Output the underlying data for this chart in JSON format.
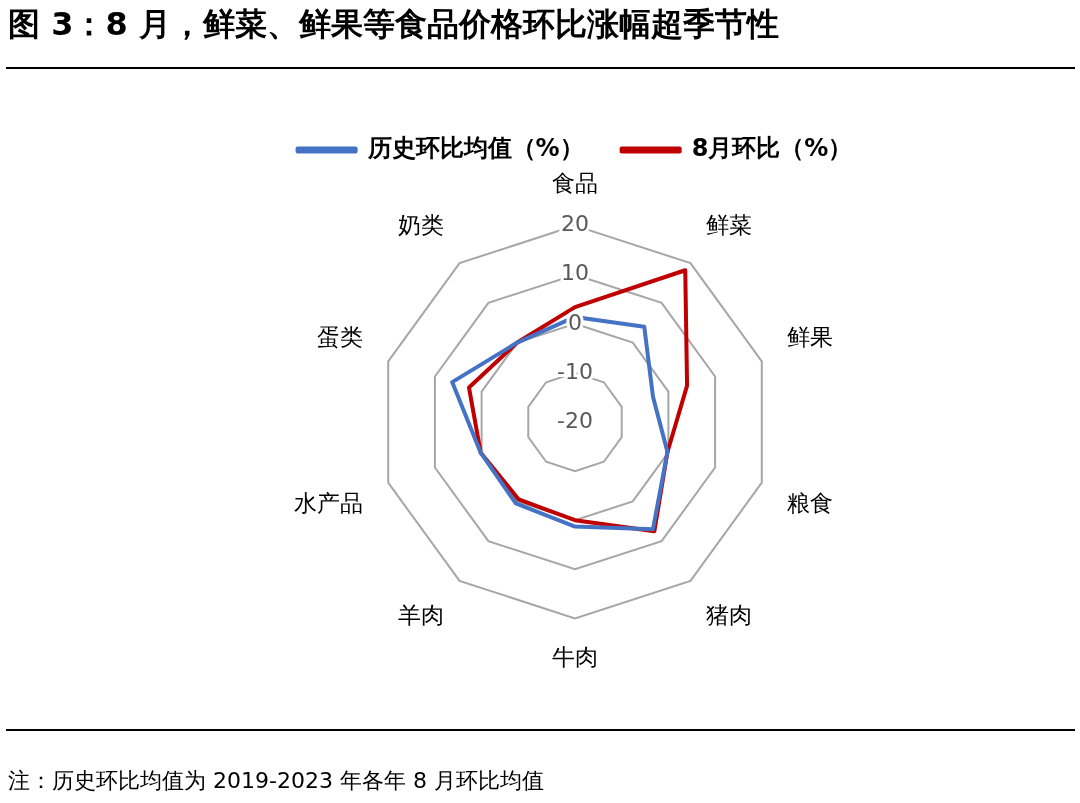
{
  "chart_data": {
    "type": "radar",
    "title": "图 3：8 月，鲜菜、鲜果等食品价格环比涨幅超季节性",
    "categories": [
      "食品",
      "鲜菜",
      "鲜果",
      "粮食",
      "猪肉",
      "牛肉",
      "羊肉",
      "水产品",
      "蛋类",
      "奶类"
    ],
    "series": [
      {
        "name": "历史环比均值（%）",
        "color": "#4472c4",
        "values": [
          1.4,
          4.0,
          -3.3,
          -0.2,
          7.0,
          1.3,
          0.5,
          0.2,
          6.3,
          0
        ]
      },
      {
        "name": "8月环比（%）",
        "color": "#c00000",
        "values": [
          3.4,
          18.2,
          4.0,
          -0.2,
          7.5,
          0,
          -0.5,
          0.2,
          2.7,
          0
        ]
      }
    ],
    "ylim": [
      -20,
      20
    ],
    "yticks": [
      -20,
      -10,
      0,
      10,
      20
    ],
    "grid": true,
    "legend": "top",
    "marker": "none",
    "annotations": [
      "注：历史环比均值为 2019-2023 年各年 8 月环比均值"
    ]
  }
}
